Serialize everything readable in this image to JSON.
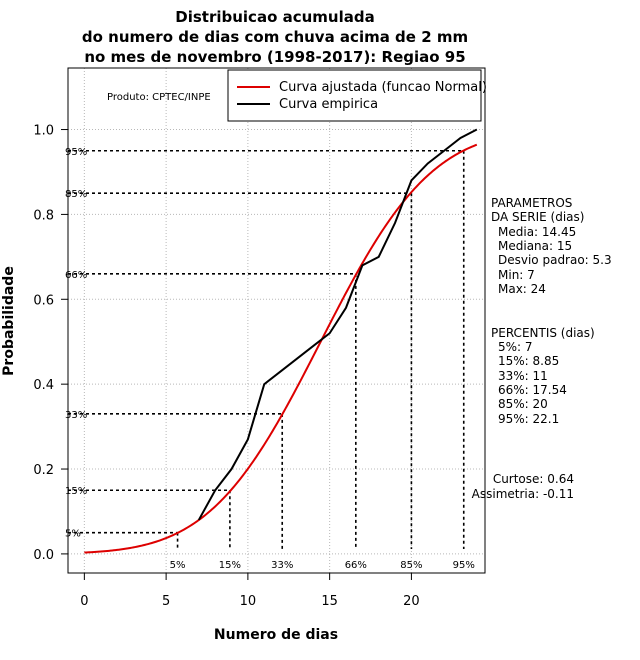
{
  "chart_data": {
    "type": "line",
    "title_lines": [
      "Distribuicao acumulada",
      "do numero de dias com chuva acima de 2 mm",
      "no mes de novembro (1998-2017): Regiao 95"
    ],
    "xlabel": "Numero de dias",
    "ylabel": "Probabilidade",
    "xlim": [
      -1,
      24.5
    ],
    "ylim": [
      -0.045,
      1.145
    ],
    "x_ticks": [
      0,
      5,
      10,
      15,
      20
    ],
    "y_ticks": [
      0.0,
      0.2,
      0.4,
      0.6,
      0.8,
      1.0
    ],
    "x_tick_labels": [
      "0",
      "5",
      "10",
      "15",
      "20"
    ],
    "y_tick_labels": [
      "0.0",
      "0.2",
      "0.4",
      "0.6",
      "0.8",
      "1.0"
    ],
    "grid": true,
    "credit": "Produto: CPTEC/INPE",
    "legend_position": "top-right",
    "normal_params": {
      "mean": 14.45,
      "sd": 5.3,
      "x_start": 0,
      "x_end": 24
    },
    "series": [
      {
        "name": "Curva ajustada (funcao Normal)",
        "color": "#dd0000",
        "kind": "normal"
      },
      {
        "name": "Curva empirica",
        "color": "#000000",
        "kind": "points",
        "x": [
          7,
          8,
          9,
          10,
          11,
          12,
          13,
          14,
          15,
          16,
          17,
          18,
          19,
          20,
          21,
          22,
          23,
          24
        ],
        "y": [
          0.08,
          0.15,
          0.2,
          0.27,
          0.4,
          0.43,
          0.46,
          0.49,
          0.52,
          0.58,
          0.68,
          0.7,
          0.78,
          0.88,
          0.92,
          0.95,
          0.98,
          1.0
        ]
      }
    ],
    "percentile_guides": [
      {
        "x": 5.7,
        "p": 0.05,
        "y_label": "5%",
        "x_label": "5%"
      },
      {
        "x": 8.9,
        "p": 0.15,
        "y_label": "15%",
        "x_label": "15%"
      },
      {
        "x": 12.1,
        "p": 0.33,
        "y_label": "33%",
        "x_label": "33%"
      },
      {
        "x": 16.6,
        "p": 0.66,
        "y_label": "66%",
        "x_label": "66%"
      },
      {
        "x": 20.0,
        "p": 0.85,
        "y_label": "85%",
        "x_label": "85%"
      },
      {
        "x": 23.2,
        "p": 0.95,
        "y_label": "95%",
        "x_label": "95%"
      }
    ],
    "parameters": {
      "header": [
        "PARAMETROS",
        "DA SERIE (dias)"
      ],
      "lines": [
        "Media: 14.45",
        "Mediana: 15",
        "Desvio padrao: 5.3",
        "Min: 7",
        "Max: 24"
      ]
    },
    "percentiles": {
      "header": "PERCENTIS (dias)",
      "lines": [
        "5%: 7",
        "15%: 8.85",
        "33%: 11",
        "66%: 17.54",
        "85%: 20",
        "95%: 22.1"
      ]
    },
    "shape": {
      "lines": [
        "Curtose: 0.64",
        "Assimetria: -0.11"
      ]
    }
  }
}
